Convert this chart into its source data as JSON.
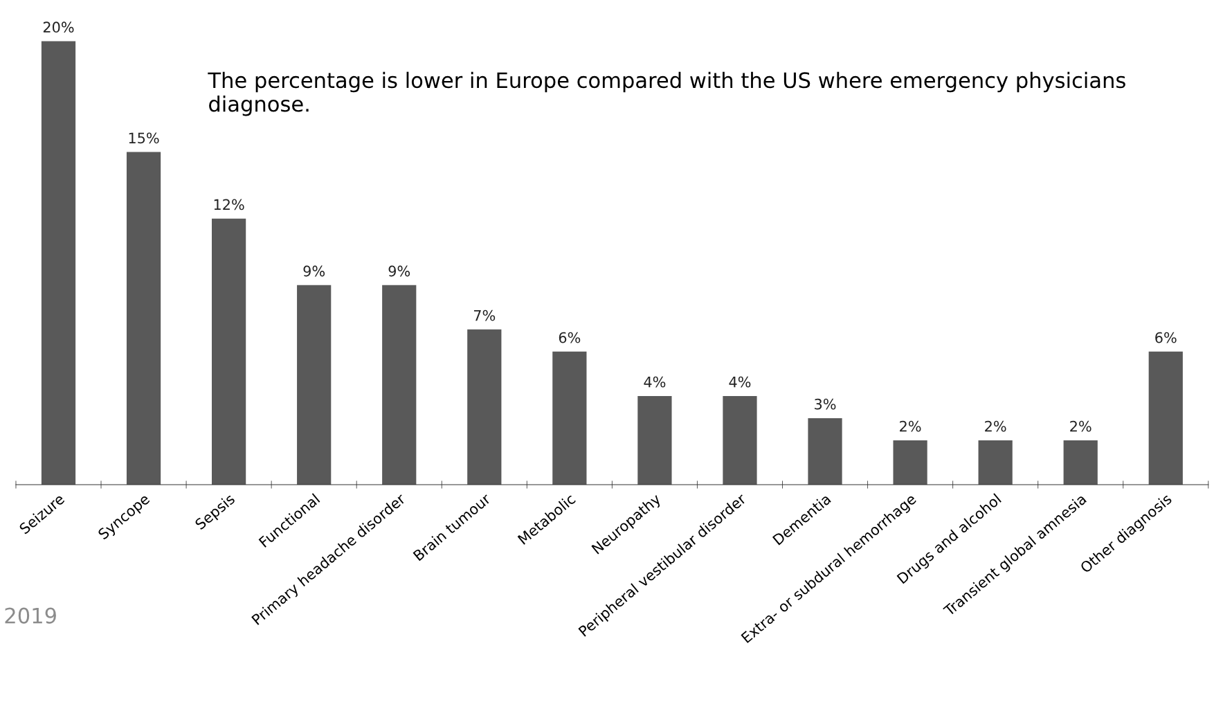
{
  "chart_data": {
    "type": "bar",
    "categories": [
      "Seizure",
      "Syncope",
      "Sepsis",
      "Functional",
      "Primary headache disorder",
      "Brain tumour",
      "Metabolic",
      "Neuropathy",
      "Peripheral vestibular disorder",
      "Dementia",
      "Extra- or subdural hemorrhage",
      "Drugs and alcohol",
      "Transient global amnesia",
      "Other diagnosis"
    ],
    "values": [
      20,
      15,
      12,
      9,
      9,
      7,
      6,
      4,
      4,
      3,
      2,
      2,
      2,
      6
    ],
    "value_labels": [
      "20%",
      "15%",
      "12%",
      "9%",
      "9%",
      "7%",
      "6%",
      "4%",
      "4%",
      "3%",
      "2%",
      "2%",
      "2%",
      "6%"
    ],
    "color": "#595959",
    "annotations": [
      "The percentage is lower in Europe compared with the US where emergency physicians diagnose.",
      "2019"
    ]
  }
}
